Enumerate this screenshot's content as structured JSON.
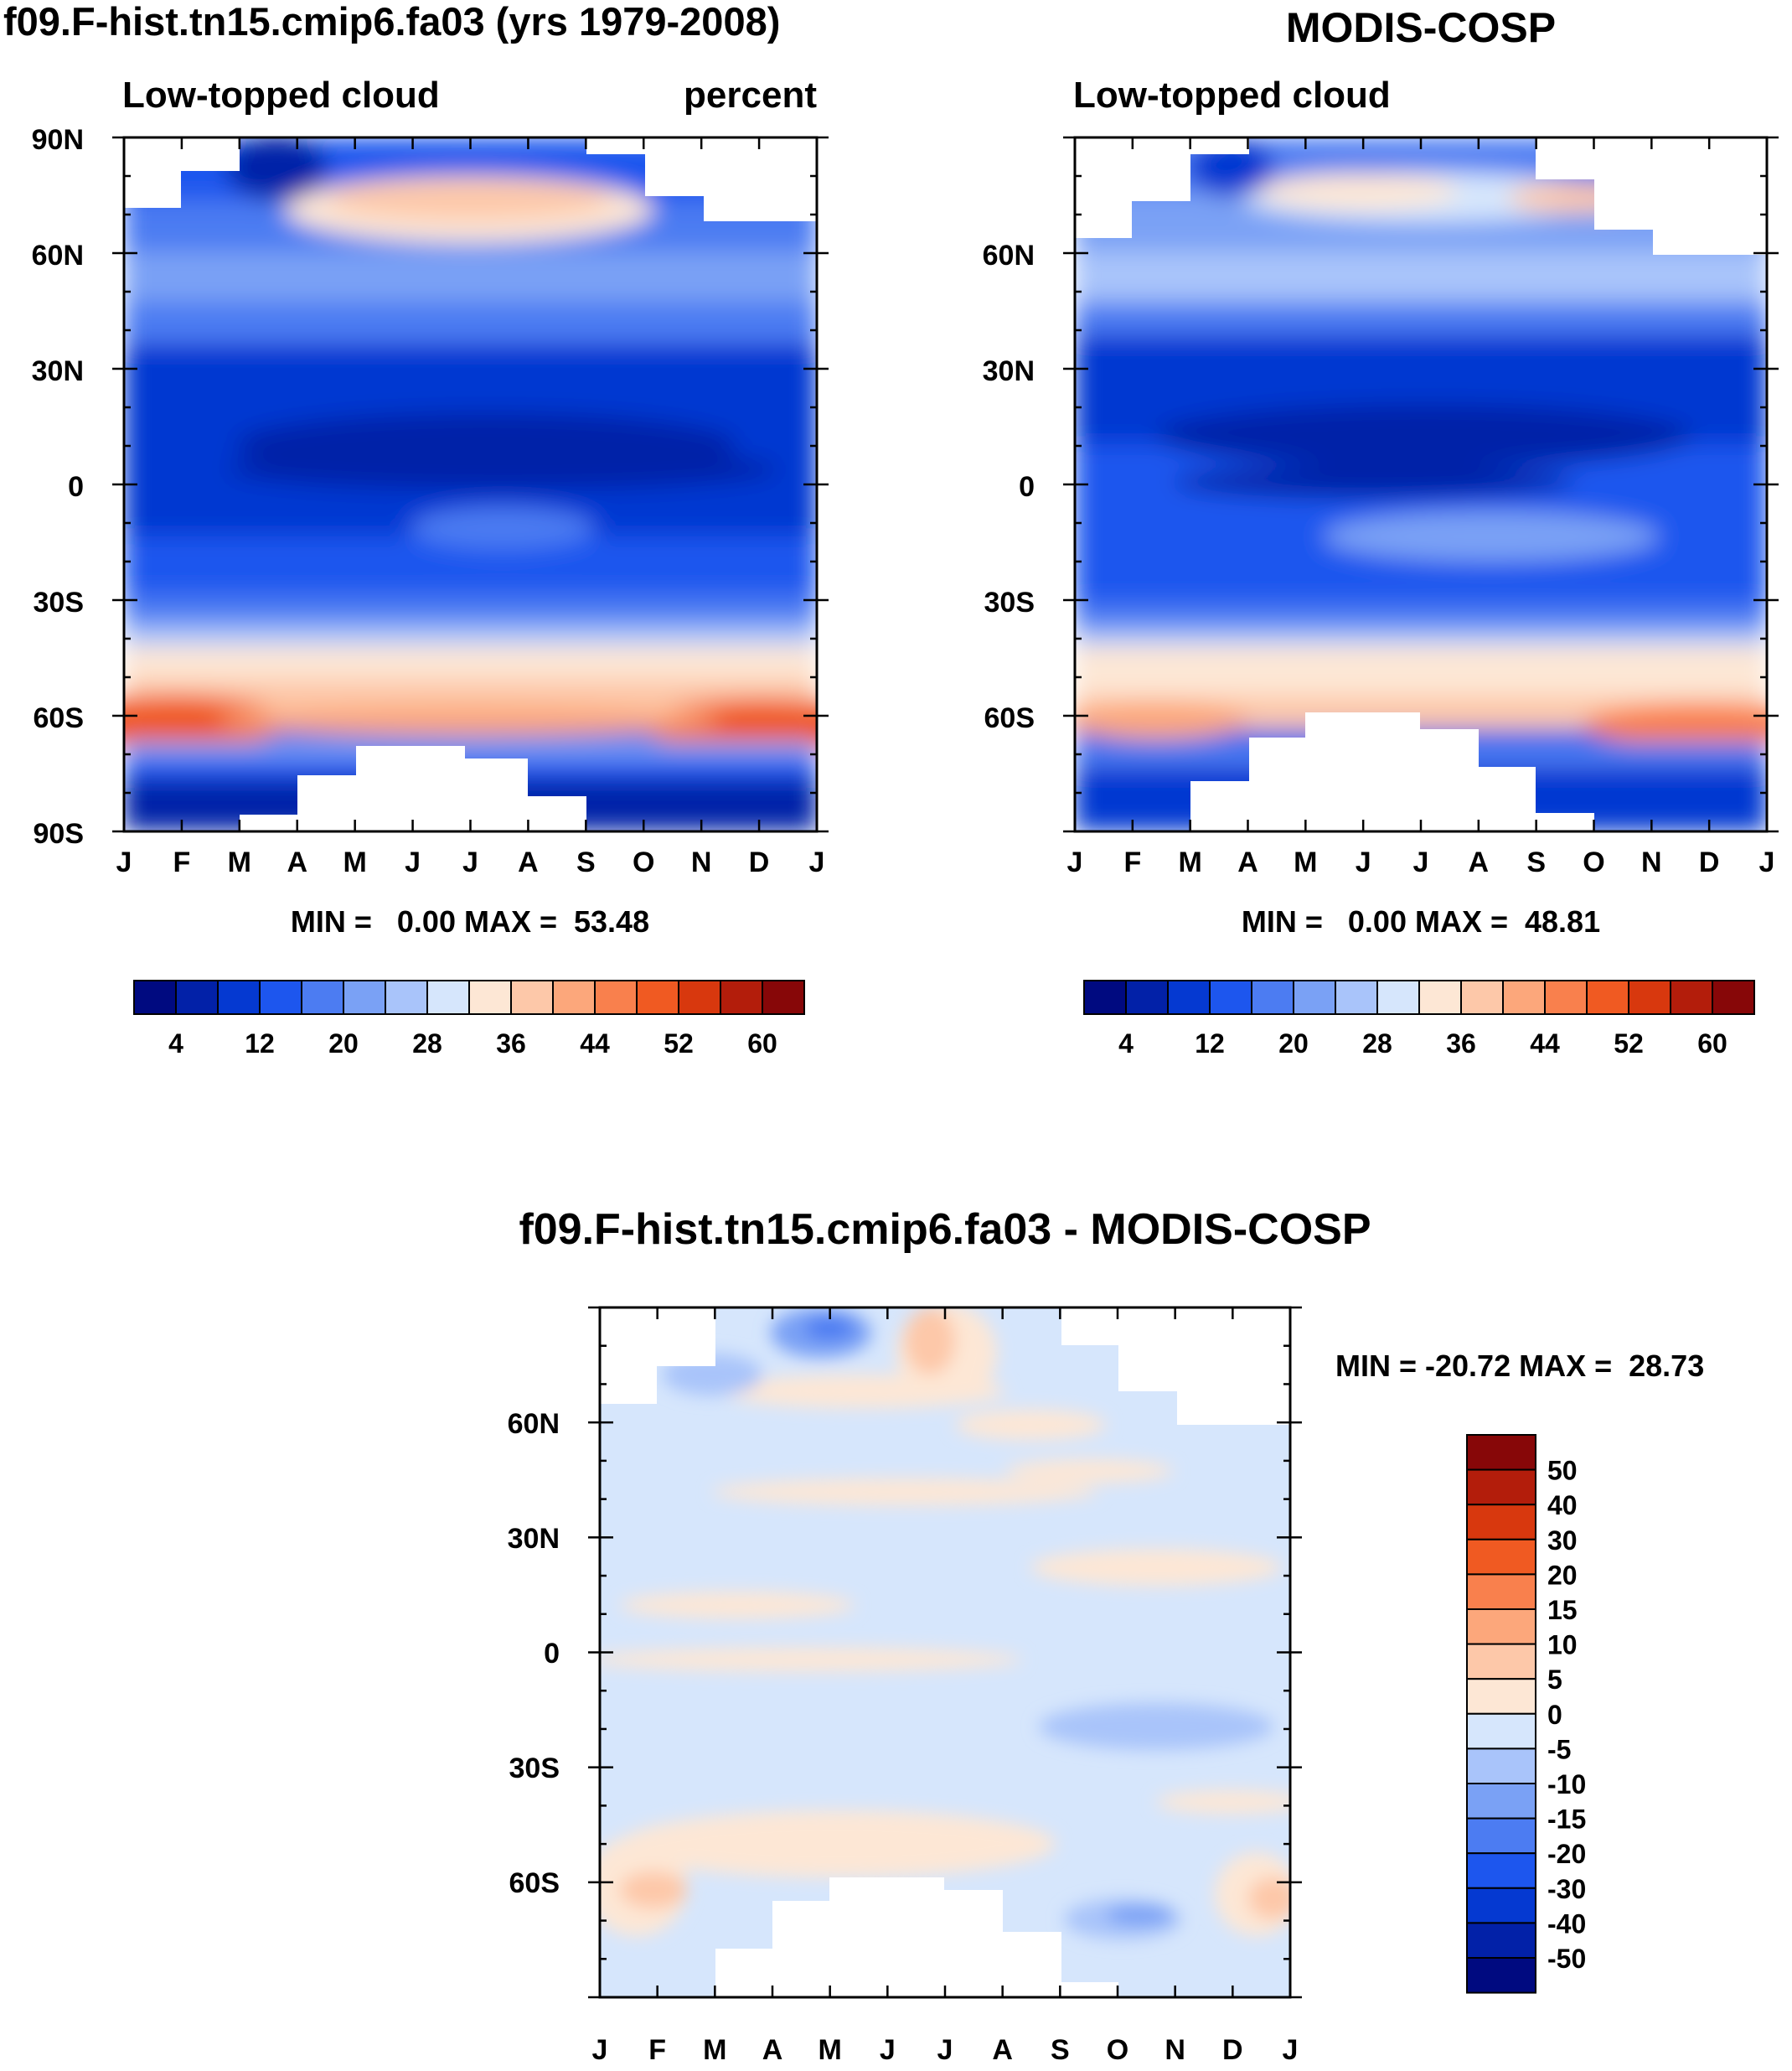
{
  "chart_data": [
    {
      "type": "heatmap",
      "id": "model",
      "title": "f09.F-hist.tn15.cmip6.fa03 (yrs 1979-2008)",
      "left_label": "Low-topped cloud",
      "right_label": "percent",
      "x_ticks": [
        "J",
        "F",
        "M",
        "A",
        "M",
        "J",
        "J",
        "A",
        "S",
        "O",
        "N",
        "D",
        "J"
      ],
      "y_ticks": [
        "90N",
        "60N",
        "30N",
        "0",
        "30S",
        "60S",
        "90S"
      ],
      "ylim": [
        -90,
        90
      ],
      "min_max_text": "MIN =   0.00 MAX =  53.48",
      "min": 0.0,
      "max": 53.48,
      "colorbar": {
        "orientation": "horizontal",
        "labels": [
          "4",
          "12",
          "20",
          "28",
          "36",
          "44",
          "52",
          "60"
        ],
        "colors": [
          "#000a80",
          "#0221a8",
          "#0539d1",
          "#1d56ee",
          "#4c7cf2",
          "#7aa1f5",
          "#a9c4fa",
          "#d6e6fc",
          "#fde7d5",
          "#fdc8a9",
          "#fca77b",
          "#f9804d",
          "#f05a22",
          "#d8380e",
          "#b31d0b",
          "#870708"
        ]
      }
    },
    {
      "type": "heatmap",
      "id": "obs",
      "title": "MODIS-COSP",
      "left_label": "Low-topped cloud",
      "x_ticks": [
        "J",
        "F",
        "M",
        "A",
        "M",
        "J",
        "J",
        "A",
        "S",
        "O",
        "N",
        "D",
        "J"
      ],
      "y_ticks": [
        "60N",
        "30N",
        "0",
        "30S",
        "60S"
      ],
      "ylim": [
        -90,
        90
      ],
      "min_max_text": "MIN =   0.00 MAX =  48.81",
      "min": 0.0,
      "max": 48.81,
      "colorbar": {
        "orientation": "horizontal",
        "labels": [
          "4",
          "12",
          "20",
          "28",
          "36",
          "44",
          "52",
          "60"
        ],
        "colors": [
          "#000a80",
          "#0221a8",
          "#0539d1",
          "#1d56ee",
          "#4c7cf2",
          "#7aa1f5",
          "#a9c4fa",
          "#d6e6fc",
          "#fde7d5",
          "#fdc8a9",
          "#fca77b",
          "#f9804d",
          "#f05a22",
          "#d8380e",
          "#b31d0b",
          "#870708"
        ]
      }
    },
    {
      "type": "heatmap",
      "id": "diff",
      "title": "f09.F-hist.tn15.cmip6.fa03 - MODIS-COSP",
      "x_ticks": [
        "J",
        "F",
        "M",
        "A",
        "M",
        "J",
        "J",
        "A",
        "S",
        "O",
        "N",
        "D",
        "J"
      ],
      "y_ticks": [
        "60N",
        "30N",
        "0",
        "30S",
        "60S"
      ],
      "ylim": [
        -90,
        90
      ],
      "min_max_text": "MIN = -20.72 MAX =  28.73",
      "min": -20.72,
      "max": 28.73,
      "colorbar": {
        "orientation": "vertical",
        "labels": [
          "50",
          "40",
          "30",
          "20",
          "15",
          "10",
          "5",
          "0",
          "-5",
          "-10",
          "-15",
          "-20",
          "-30",
          "-40",
          "-50"
        ],
        "colors": [
          "#870708",
          "#b31d0b",
          "#d8380e",
          "#f05a22",
          "#f9804d",
          "#fca77b",
          "#fdc8a9",
          "#fde7d5",
          "#d6e6fc",
          "#a9c4fa",
          "#7aa1f5",
          "#4c7cf2",
          "#1d56ee",
          "#0539d1",
          "#0221a8",
          "#000a80"
        ]
      }
    }
  ]
}
